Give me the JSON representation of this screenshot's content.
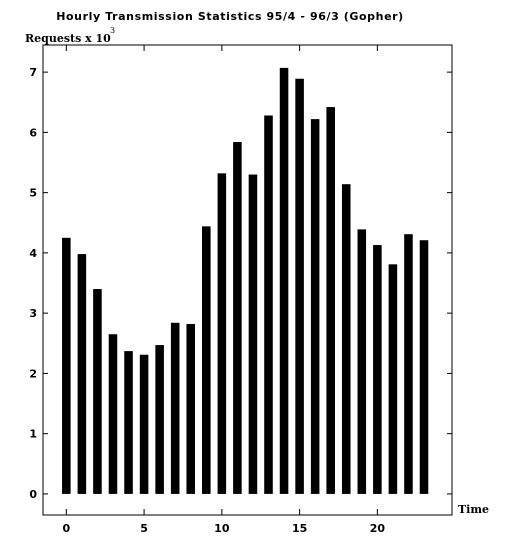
{
  "chart_data": {
    "type": "bar",
    "title": "Hourly Transmission Statistics 95/4 - 96/3 (Gopher)",
    "xlabel": "Time",
    "ylabel": "Requests x 10",
    "ylabel_exponent": "3",
    "x": [
      0,
      1,
      2,
      3,
      4,
      5,
      6,
      7,
      8,
      9,
      10,
      11,
      12,
      13,
      14,
      15,
      16,
      17,
      18,
      19,
      20,
      21,
      22,
      23
    ],
    "values": [
      4.25,
      3.98,
      3.4,
      2.65,
      2.37,
      2.31,
      2.47,
      2.84,
      2.82,
      4.44,
      5.32,
      5.84,
      5.3,
      6.28,
      7.07,
      6.89,
      6.22,
      6.42,
      5.14,
      4.39,
      4.13,
      3.81,
      4.31,
      4.21
    ],
    "xlim": [
      -1.5,
      24.8
    ],
    "ylim": [
      -0.35,
      7.45
    ],
    "xticks": [
      0,
      5,
      10,
      15,
      20
    ],
    "xtick_labels": [
      "0",
      "5",
      "10",
      "15",
      "20"
    ],
    "yticks": [
      0,
      1,
      2,
      3,
      4,
      5,
      6,
      7
    ],
    "ytick_labels": [
      "0",
      "1",
      "2",
      "3",
      "4",
      "5",
      "6",
      "7"
    ],
    "bar_color": "#000000",
    "grid": false,
    "legend": "none"
  }
}
